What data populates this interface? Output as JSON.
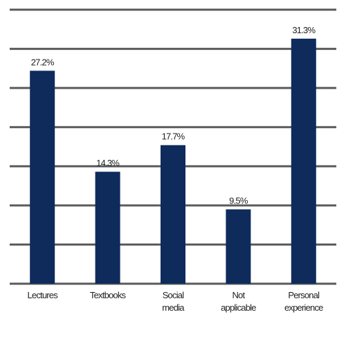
{
  "chart_data": {
    "type": "bar",
    "categories": [
      "Lectures",
      "Textbooks",
      "Social media",
      "Not applicable",
      "Personal experience"
    ],
    "values": [
      27.2,
      14.3,
      17.7,
      9.5,
      31.3
    ],
    "value_labels": [
      "27.2%",
      "14.3%",
      "17.7%",
      "9.5%",
      "31.3%"
    ],
    "color": "#0e2b5c",
    "ylim": [
      0,
      35
    ],
    "yticks": [
      0,
      5,
      10,
      15,
      20,
      25,
      30,
      35
    ],
    "grid": true
  }
}
